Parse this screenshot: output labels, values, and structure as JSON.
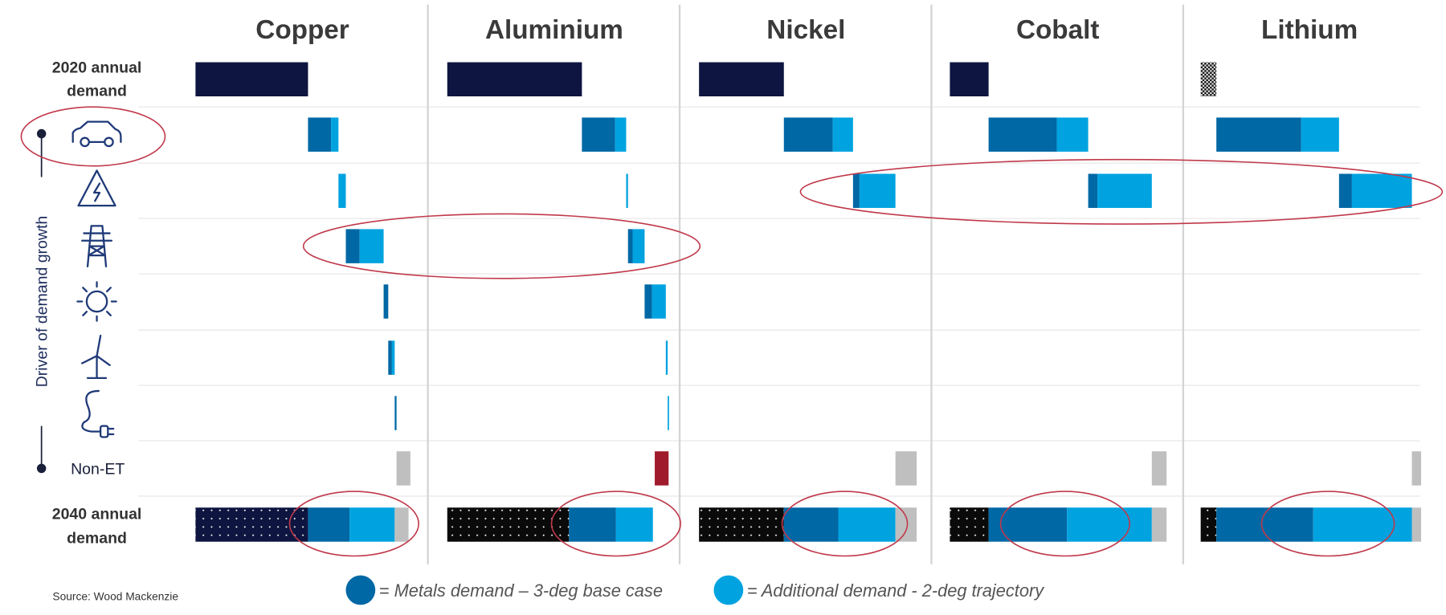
{
  "chart_data": {
    "type": "bar",
    "subtype": "waterfall-small-multiples",
    "units": "relative demand index (estimated from bar lengths)",
    "metals": [
      {
        "name": "Copper",
        "demand_2020": 122,
        "pattern_2020": "solid",
        "drivers": [
          [
            25,
            8
          ],
          [
            0,
            8
          ],
          [
            15,
            26
          ],
          [
            5,
            0
          ],
          [
            4,
            3
          ],
          [
            2,
            0
          ]
        ],
        "non_et": 15,
        "demand_2040": {
          "existing": 122,
          "base_case": 45,
          "additional": 49,
          "non_et": 15
        }
      },
      {
        "name": "Aluminium",
        "demand_2020": 146,
        "pattern_2020": "solid",
        "drivers": [
          [
            36,
            12
          ],
          [
            0,
            2
          ],
          [
            5,
            13
          ],
          [
            8,
            15
          ],
          [
            0,
            2
          ],
          [
            0,
            1
          ]
        ],
        "non_et": -15,
        "demand_2040": {
          "existing": 132,
          "base_case": 51,
          "additional": 40,
          "non_et": 0
        }
      },
      {
        "name": "Nickel",
        "demand_2020": 92,
        "pattern_2020": "solid",
        "drivers": [
          [
            53,
            22
          ],
          [
            7,
            39
          ],
          [
            0,
            0
          ],
          [
            0,
            0
          ],
          [
            0,
            0
          ],
          [
            0,
            0
          ]
        ],
        "non_et": 23,
        "demand_2040": {
          "existing": 92,
          "base_case": 59,
          "additional": 62,
          "non_et": 23
        }
      },
      {
        "name": "Cobalt",
        "demand_2020": 42,
        "pattern_2020": "solid",
        "drivers": [
          [
            74,
            34
          ],
          [
            10,
            59
          ],
          [
            0,
            0
          ],
          [
            0,
            0
          ],
          [
            0,
            0
          ],
          [
            0,
            0
          ]
        ],
        "non_et": 16,
        "demand_2040": {
          "existing": 42,
          "base_case": 85,
          "additional": 92,
          "non_et": 16
        }
      },
      {
        "name": "Lithium",
        "demand_2020": 17,
        "pattern_2020": "checkered",
        "drivers": [
          [
            92,
            41
          ],
          [
            14,
            65
          ],
          [
            0,
            0
          ],
          [
            0,
            0
          ],
          [
            0,
            0
          ],
          [
            0,
            0
          ]
        ],
        "non_et": 10,
        "demand_2040": {
          "existing": 17,
          "base_case": 105,
          "additional": 107,
          "non_et": 10
        }
      }
    ],
    "driver_icons": [
      "car-icon",
      "high-voltage-warning-icon",
      "transmission-tower-icon",
      "sun-icon",
      "wind-turbine-icon",
      "plug-icon"
    ],
    "row_labels": {
      "row_2020_line1": "2020 annual",
      "row_2020_line2": "demand",
      "non_et": "Non-ET",
      "row_2040_line1": "2040 annual",
      "row_2040_line2": "demand"
    },
    "y_axis_label": "Driver of demand growth",
    "legend": [
      {
        "label": "= Metals demand – 3-deg base case",
        "color": "#0068a5"
      },
      {
        "label": "= Additional demand - 2-deg trajectory",
        "color": "#00a3e0"
      }
    ],
    "source": "Source: Wood Mackenzie",
    "colors": {
      "demand_2020": "#0d1540",
      "base_case": "#0068a5",
      "additional": "#00a3e0",
      "non_et_positive": "#bfbfbf",
      "non_et_negative": "#a01c2c",
      "annotation": "#c0394b"
    }
  }
}
